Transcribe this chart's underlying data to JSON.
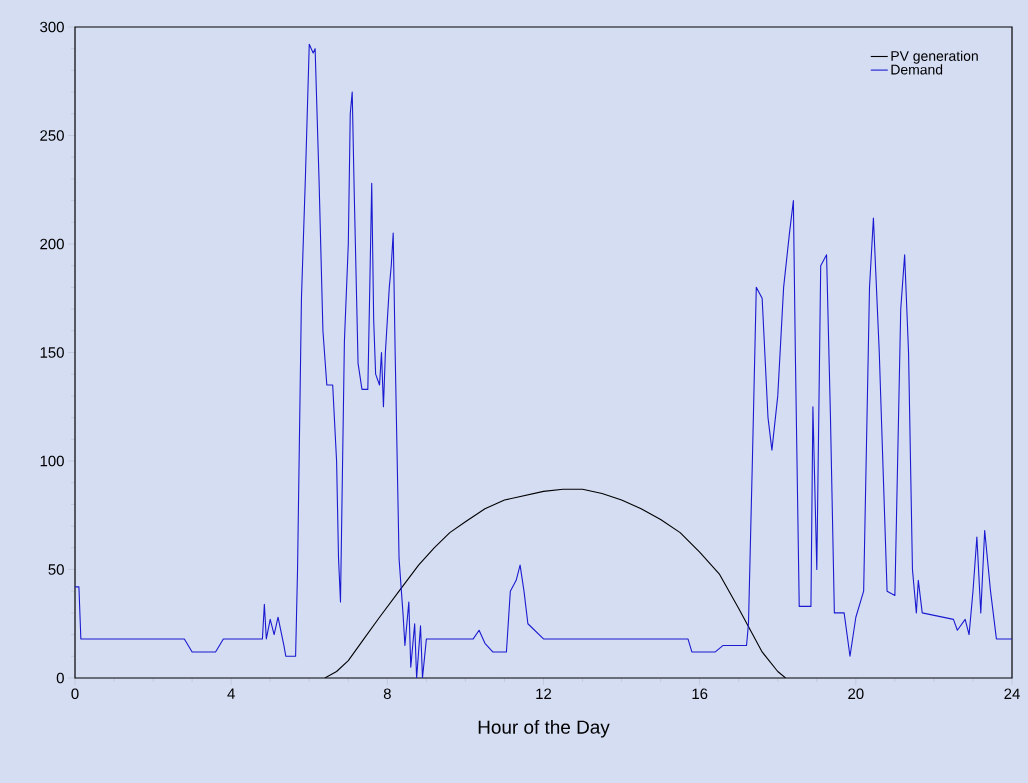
{
  "chart_data": {
    "type": "line",
    "xlabel": "Hour of the Day",
    "xlim": [
      0,
      24
    ],
    "xticks": [
      0,
      4,
      8,
      12,
      16,
      20,
      24
    ],
    "ylim": [
      0,
      300
    ],
    "yticks": [
      0,
      50,
      100,
      150,
      200,
      250,
      300
    ],
    "legend": "top right",
    "grid": false,
    "marker": "none",
    "line_style": "solid",
    "series": [
      {
        "name": "PV generation",
        "color": "#000000",
        "x": [
          6.4,
          6.7,
          7.0,
          7.4,
          7.8,
          8.3,
          8.8,
          9.2,
          9.6,
          10.0,
          10.5,
          11.0,
          11.5,
          12.0,
          12.5,
          13.0,
          13.5,
          14.0,
          14.5,
          15.0,
          15.5,
          16.0,
          16.5,
          17.0,
          17.3,
          17.6,
          18.0,
          18.2
        ],
        "values": [
          0,
          3,
          8,
          18,
          28,
          40,
          52,
          60,
          67,
          72,
          78,
          82,
          84,
          86,
          87,
          87,
          85,
          82,
          78,
          73,
          67,
          58,
          48,
          32,
          22,
          12,
          3,
          0
        ]
      },
      {
        "name": "Demand",
        "color": "#1a1ad0",
        "x": [
          0,
          0.1,
          0.15,
          2.8,
          3.0,
          3.6,
          3.8,
          4.8,
          4.85,
          4.9,
          5.0,
          5.1,
          5.2,
          5.35,
          5.4,
          5.65,
          5.7,
          5.8,
          5.9,
          6.0,
          6.1,
          6.15,
          6.25,
          6.35,
          6.45,
          6.6,
          6.7,
          6.75,
          6.8,
          6.9,
          7.0,
          7.05,
          7.1,
          7.15,
          7.25,
          7.35,
          7.5,
          7.55,
          7.6,
          7.65,
          7.7,
          7.8,
          7.85,
          7.9,
          7.95,
          8.05,
          8.1,
          8.15,
          8.2,
          8.3,
          8.4,
          8.45,
          8.55,
          8.6,
          8.7,
          8.75,
          8.85,
          8.9,
          9.0,
          10.2,
          10.35,
          10.5,
          10.7,
          11.05,
          11.15,
          11.3,
          11.4,
          11.5,
          11.6,
          12.0,
          14.5,
          15.7,
          15.8,
          16.4,
          16.6,
          17.2,
          17.25,
          17.35,
          17.45,
          17.6,
          17.75,
          17.85,
          18.0,
          18.15,
          18.3,
          18.4,
          18.45,
          18.55,
          18.85,
          18.9,
          19.0,
          19.1,
          19.25,
          19.35,
          19.45,
          19.7,
          19.85,
          20.0,
          20.2,
          20.35,
          20.45,
          20.6,
          20.8,
          21.0,
          21.15,
          21.25,
          21.35,
          21.45,
          21.55,
          21.6,
          21.7,
          22.5,
          22.6,
          22.8,
          22.9,
          23.0,
          23.1,
          23.2,
          23.3,
          23.45,
          23.6,
          24.0
        ],
        "values": [
          42,
          42,
          18,
          18,
          12,
          12,
          18,
          18,
          34,
          18,
          27,
          20,
          28,
          15,
          10,
          10,
          50,
          175,
          230,
          292,
          288,
          290,
          230,
          160,
          135,
          135,
          100,
          55,
          35,
          155,
          200,
          260,
          270,
          225,
          145,
          133,
          133,
          180,
          228,
          165,
          140,
          135,
          150,
          125,
          150,
          180,
          190,
          205,
          150,
          55,
          30,
          15,
          35,
          5,
          25,
          0,
          24,
          0,
          18,
          18,
          22,
          16,
          12,
          12,
          40,
          45,
          52,
          40,
          25,
          18,
          18,
          18,
          12,
          12,
          15,
          15,
          25,
          100,
          180,
          175,
          120,
          105,
          130,
          180,
          205,
          220,
          150,
          33,
          33,
          125,
          50,
          190,
          195,
          120,
          30,
          30,
          10,
          28,
          40,
          180,
          212,
          150,
          40,
          38,
          170,
          195,
          150,
          50,
          30,
          45,
          30,
          27,
          22,
          27,
          20,
          40,
          65,
          30,
          68,
          40,
          18,
          18
        ]
      }
    ]
  }
}
